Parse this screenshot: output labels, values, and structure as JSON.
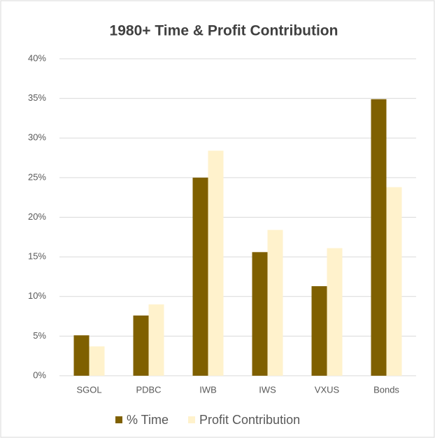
{
  "chart_data": {
    "type": "bar",
    "title": "1980+ Time & Profit Contribution",
    "categories": [
      "SGOL",
      "PDBC",
      "IWB",
      "IWS",
      "VXUS",
      "Bonds"
    ],
    "series": [
      {
        "name": "% Time",
        "color": "#7f6000",
        "values": [
          5.1,
          7.6,
          25.0,
          15.6,
          11.3,
          34.9
        ]
      },
      {
        "name": "Profit Contribution",
        "color": "#fff2cc",
        "values": [
          3.7,
          9.0,
          28.4,
          18.4,
          16.1,
          23.8
        ]
      }
    ],
    "ylim": [
      0,
      40
    ],
    "yticks": [
      {
        "value": 0,
        "label": "0%"
      },
      {
        "value": 5,
        "label": "5%"
      },
      {
        "value": 10,
        "label": "10%"
      },
      {
        "value": 15,
        "label": "15%"
      },
      {
        "value": 20,
        "label": "20%"
      },
      {
        "value": 25,
        "label": "25%"
      },
      {
        "value": 30,
        "label": "30%"
      },
      {
        "value": 35,
        "label": "35%"
      },
      {
        "value": 40,
        "label": "40%"
      }
    ],
    "grid": true,
    "legend": "bottom"
  }
}
